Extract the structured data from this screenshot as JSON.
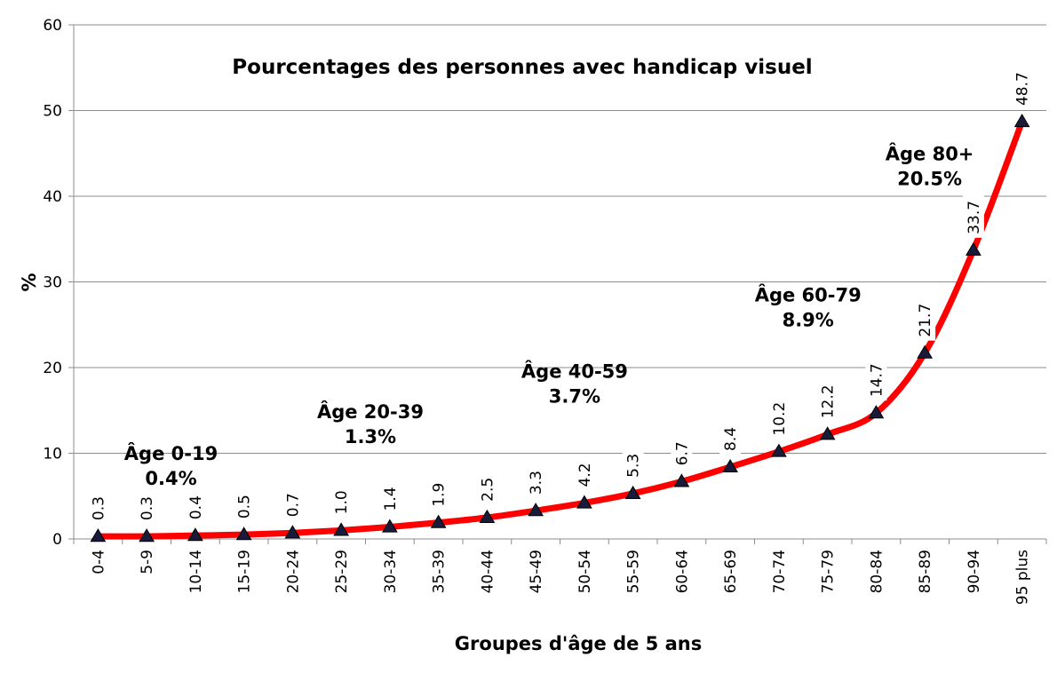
{
  "chart_data": {
    "type": "line",
    "title": "Pourcentages des personnes avec handicap visuel",
    "xlabel": "Groupes d'âge de 5 ans",
    "ylabel": "%",
    "ylim": [
      0,
      60
    ],
    "yticks": [
      0,
      10,
      20,
      30,
      40,
      50,
      60
    ],
    "grid": true,
    "categories": [
      "0-4",
      "5-9",
      "10-14",
      "15-19",
      "20-24",
      "25-29",
      "30-34",
      "35-39",
      "40-44",
      "45-49",
      "50-54",
      "55-59",
      "60-64",
      "65-69",
      "70-74",
      "75-79",
      "80-84",
      "85-89",
      "90-94",
      "95 plus"
    ],
    "values": [
      0.3,
      0.3,
      0.4,
      0.5,
      0.7,
      1.0,
      1.4,
      1.9,
      2.5,
      3.3,
      4.2,
      5.3,
      6.7,
      8.4,
      10.2,
      12.2,
      14.7,
      21.7,
      33.7,
      48.7
    ],
    "value_labels": [
      "0.3",
      "0.3",
      "0.4",
      "0.5",
      "0.7",
      "1.0",
      "1.4",
      "1.9",
      "2.5",
      "3.3",
      "4.2",
      "5.3",
      "6.7",
      "8.4",
      "10.2",
      "12.2",
      "14.7",
      "21.7",
      "33.7",
      "48.7"
    ],
    "line_color": "#ff0000",
    "marker_color": "#1a1a3a",
    "annotations": [
      {
        "lines": [
          "Âge 0-19",
          "0.4%"
        ],
        "category": "5-9",
        "offset": 0.5,
        "y": 9.2
      },
      {
        "lines": [
          "Âge 20-39",
          "1.3%"
        ],
        "category": "25-29",
        "offset": 0.6,
        "y": 14.1
      },
      {
        "lines": [
          "Âge 40-59",
          "3.7%"
        ],
        "category": "45-49",
        "offset": 0.8,
        "y": 18.8
      },
      {
        "lines": [
          "Âge 60-79",
          "8.9%"
        ],
        "category": "70-74",
        "offset": 0.6,
        "y": 27.7
      },
      {
        "lines": [
          "Âge 80+",
          "20.5%"
        ],
        "category": "85-89",
        "offset": 0.1,
        "y": 44.2
      }
    ]
  }
}
